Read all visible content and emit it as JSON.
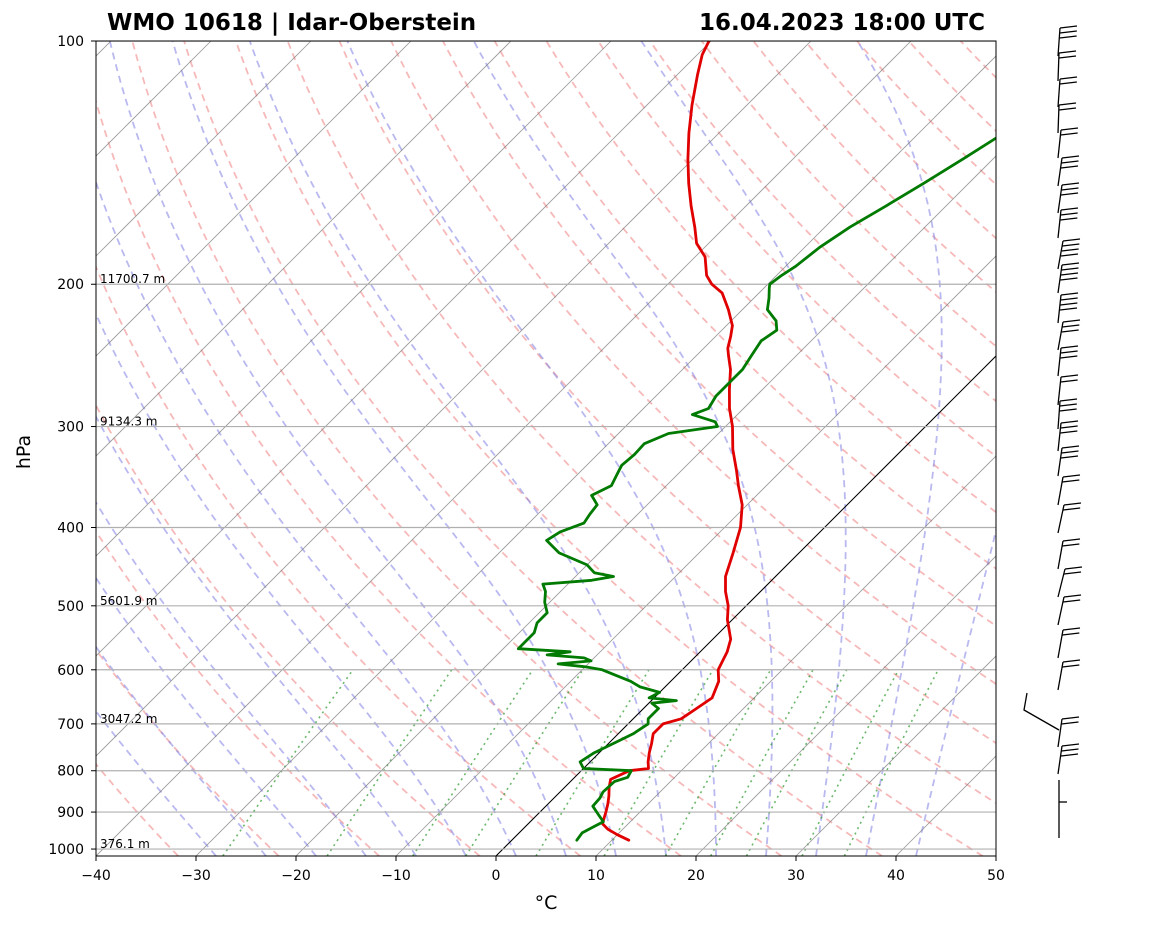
{
  "title_left": "WMO 10618 | Idar-Oberstein",
  "title_right": "16.04.2023 18:00 UTC",
  "chart_data": {
    "type": "line",
    "diagram": "skew-T log-p",
    "xlabel": "°C",
    "ylabel": "hPa",
    "xlim": [
      -40,
      50
    ],
    "ylim": [
      1020,
      100
    ],
    "y_scale": "log",
    "x_ticks": [
      -40,
      -30,
      -20,
      -10,
      0,
      10,
      20,
      30,
      40,
      50
    ],
    "x_tick_labels": [
      "−40",
      "−30",
      "−20",
      "−10",
      "0",
      "10",
      "20",
      "30",
      "40",
      "50"
    ],
    "y_ticks": [
      1000,
      900,
      800,
      700,
      600,
      500,
      400,
      300,
      200,
      100
    ],
    "y_tick_labels": [
      "1000",
      "900",
      "800",
      "700",
      "600",
      "500",
      "400",
      "300",
      "200",
      "100"
    ],
    "grid": true,
    "height_labels": [
      {
        "p": 200,
        "text": "11700.7 m"
      },
      {
        "p": 300,
        "text": "9134.3 m"
      },
      {
        "p": 500,
        "text": "5601.9 m"
      },
      {
        "p": 700,
        "text": "3047.2 m"
      },
      {
        "p": 1000,
        "text": "376.1 m"
      }
    ],
    "series": [
      {
        "role": "temperature",
        "color": "#e00000",
        "points": [
          [
            975,
            11.7
          ],
          [
            960,
            10.0
          ],
          [
            945,
            8.5
          ],
          [
            930,
            7.4
          ],
          [
            900,
            6.6
          ],
          [
            880,
            6.0
          ],
          [
            860,
            5.3
          ],
          [
            840,
            4.5
          ],
          [
            820,
            3.8
          ],
          [
            800,
            4.8
          ],
          [
            795,
            6.5
          ],
          [
            780,
            5.8
          ],
          [
            760,
            5.0
          ],
          [
            740,
            4.3
          ],
          [
            720,
            3.5
          ],
          [
            705,
            3.5
          ],
          [
            700,
            3.5
          ],
          [
            690,
            4.8
          ],
          [
            670,
            5.3
          ],
          [
            650,
            5.8
          ],
          [
            620,
            4.8
          ],
          [
            600,
            3.6
          ],
          [
            570,
            2.7
          ],
          [
            550,
            1.8
          ],
          [
            520,
            -0.5
          ],
          [
            500,
            -1.8
          ],
          [
            480,
            -3.5
          ],
          [
            460,
            -5.0
          ],
          [
            430,
            -6.6
          ],
          [
            400,
            -8.4
          ],
          [
            375,
            -10.5
          ],
          [
            355,
            -12.8
          ],
          [
            340,
            -14.5
          ],
          [
            320,
            -17.0
          ],
          [
            300,
            -19.3
          ],
          [
            285,
            -21.4
          ],
          [
            270,
            -23.3
          ],
          [
            255,
            -25.2
          ],
          [
            245,
            -26.8
          ],
          [
            240,
            -27.6
          ],
          [
            232,
            -28.5
          ],
          [
            225,
            -29.4
          ],
          [
            215,
            -31.4
          ],
          [
            205,
            -33.7
          ],
          [
            200,
            -35.6
          ],
          [
            195,
            -37.0
          ],
          [
            185,
            -39.0
          ],
          [
            178,
            -41.2
          ],
          [
            170,
            -43.0
          ],
          [
            160,
            -45.5
          ],
          [
            150,
            -48.0
          ],
          [
            140,
            -50.5
          ],
          [
            130,
            -53.0
          ],
          [
            120,
            -55.5
          ],
          [
            110,
            -58.0
          ],
          [
            104,
            -59.5
          ],
          [
            100,
            -60.2
          ]
        ]
      },
      {
        "role": "dewpoint",
        "color": "#007a00",
        "points": [
          [
            975,
            6.5
          ],
          [
            955,
            6.3
          ],
          [
            940,
            6.8
          ],
          [
            925,
            7.3
          ],
          [
            905,
            6.0
          ],
          [
            885,
            4.7
          ],
          [
            865,
            4.6
          ],
          [
            850,
            4.3
          ],
          [
            825,
            4.4
          ],
          [
            815,
            5.3
          ],
          [
            800,
            5.0
          ],
          [
            795,
            0.0
          ],
          [
            780,
            -1.0
          ],
          [
            760,
            -0.5
          ],
          [
            740,
            0.5
          ],
          [
            720,
            1.5
          ],
          [
            700,
            2.0
          ],
          [
            690,
            1.5
          ],
          [
            670,
            1.5
          ],
          [
            660,
            0.3
          ],
          [
            655,
            2.5
          ],
          [
            650,
            -0.5
          ],
          [
            640,
            0.0
          ],
          [
            630,
            -2.5
          ],
          [
            620,
            -4.0
          ],
          [
            610,
            -6.0
          ],
          [
            600,
            -8.0
          ],
          [
            595,
            -10.0
          ],
          [
            590,
            -13.0
          ],
          [
            585,
            -10.0
          ],
          [
            580,
            -11.0
          ],
          [
            575,
            -15.0
          ],
          [
            570,
            -13.0
          ],
          [
            565,
            -18.5
          ],
          [
            555,
            -18.5
          ],
          [
            540,
            -18.5
          ],
          [
            525,
            -19.2
          ],
          [
            510,
            -19.2
          ],
          [
            495,
            -20.5
          ],
          [
            480,
            -21.5
          ],
          [
            470,
            -22.5
          ],
          [
            465,
            -18.0
          ],
          [
            460,
            -16.2
          ],
          [
            455,
            -18.5
          ],
          [
            445,
            -20.0
          ],
          [
            430,
            -24.0
          ],
          [
            415,
            -26.5
          ],
          [
            405,
            -26.0
          ],
          [
            395,
            -24.5
          ],
          [
            385,
            -24.8
          ],
          [
            375,
            -25.0
          ],
          [
            365,
            -26.5
          ],
          [
            355,
            -25.5
          ],
          [
            345,
            -26.0
          ],
          [
            335,
            -26.5
          ],
          [
            325,
            -26.3
          ],
          [
            315,
            -26.4
          ],
          [
            306,
            -25.0
          ],
          [
            300,
            -20.8
          ],
          [
            296,
            -21.5
          ],
          [
            290,
            -24.5
          ],
          [
            285,
            -23.5
          ],
          [
            275,
            -24.0
          ],
          [
            265,
            -24.0
          ],
          [
            255,
            -24.0
          ],
          [
            245,
            -24.5
          ],
          [
            235,
            -25.0
          ],
          [
            228,
            -24.5
          ],
          [
            222,
            -25.5
          ],
          [
            215,
            -27.5
          ],
          [
            208,
            -28.5
          ],
          [
            202,
            -29.5
          ],
          [
            200,
            -29.8
          ],
          [
            195,
            -29.5
          ],
          [
            190,
            -29.0
          ],
          [
            180,
            -28.5
          ],
          [
            170,
            -27.5
          ],
          [
            160,
            -26.0
          ],
          [
            150,
            -24.5
          ],
          [
            140,
            -23.0
          ],
          [
            130,
            -21.5
          ],
          [
            120,
            -20.5
          ],
          [
            110,
            -19.5
          ],
          [
            104,
            -18.5
          ],
          [
            100,
            -18.3
          ]
        ]
      }
    ]
  }
}
